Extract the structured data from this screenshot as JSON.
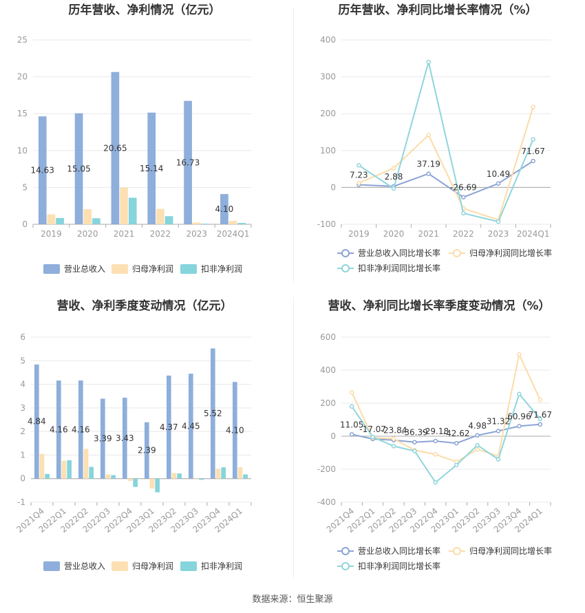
{
  "source_note": "数据来源：恒生聚源",
  "chart_data": [
    {
      "type": "bar",
      "title": "历年营收、净利情况（亿元）",
      "categories": [
        "2019",
        "2020",
        "2021",
        "2022",
        "2023",
        "2024Q1"
      ],
      "ylim": [
        0,
        25
      ],
      "yticks": [
        0,
        5,
        10,
        15,
        20,
        25
      ],
      "grid": true,
      "legend": "bottom",
      "series": [
        {
          "name": "营业总收入",
          "color": "#8eaedb",
          "values": [
            14.63,
            15.05,
            20.65,
            15.14,
            16.73,
            4.1
          ],
          "labels": [
            "14.63",
            "15.05",
            "20.65",
            "15.14",
            "16.73",
            "4.10"
          ]
        },
        {
          "name": "归母净利润",
          "color": "#fce0b3",
          "values": [
            1.35,
            2.05,
            4.98,
            2.09,
            0.25,
            0.45
          ]
        },
        {
          "name": "扣非净利润",
          "color": "#86d4dc",
          "values": [
            0.85,
            0.82,
            3.6,
            1.1,
            0.08,
            0.18
          ]
        }
      ]
    },
    {
      "type": "line",
      "title": "历年营收、净利同比增长率情况（%）",
      "categories": [
        "2019",
        "2020",
        "2021",
        "2022",
        "2023",
        "2024Q1"
      ],
      "ylim": [
        -100,
        400
      ],
      "yticks": [
        -100,
        0,
        100,
        200,
        300,
        400
      ],
      "grid": true,
      "legend": "bottom",
      "series": [
        {
          "name": "营业总收入同比增长率",
          "color": "#8ba3d4",
          "values": [
            7.23,
            2.88,
            37.19,
            -26.69,
            10.49,
            71.67
          ],
          "labels": [
            "7.23",
            "2.88",
            "37.19",
            "-26.69",
            "10.49",
            "71.67"
          ]
        },
        {
          "name": "归母净利润同比增长率",
          "color": "#fbdca8",
          "values": [
            12,
            52,
            142,
            -57,
            -88,
            218
          ]
        },
        {
          "name": "扣非净利润同比增长率",
          "color": "#8fd5dc",
          "values": [
            60,
            -3,
            340,
            -70,
            -93,
            130
          ]
        }
      ]
    },
    {
      "type": "bar",
      "title": "营收、净利季度变动情况（亿元）",
      "categories": [
        "2021Q4",
        "2022Q1",
        "2022Q2",
        "2022Q3",
        "2022Q4",
        "2023Q1",
        "2023Q2",
        "2023Q3",
        "2023Q4",
        "2024Q1"
      ],
      "ylim": [
        -1,
        6
      ],
      "yticks": [
        -1,
        0,
        1,
        2,
        3,
        4,
        5,
        6
      ],
      "grid": true,
      "legend": "bottom",
      "series": [
        {
          "name": "营业总收入",
          "color": "#8eaedb",
          "values": [
            4.84,
            4.16,
            4.16,
            3.39,
            3.43,
            2.39,
            4.37,
            4.45,
            5.52,
            4.1
          ],
          "labels": [
            "4.84",
            "4.16",
            "4.16",
            "3.39",
            "3.43",
            "2.39",
            "4.37",
            "4.45",
            "5.52",
            "4.10"
          ]
        },
        {
          "name": "归母净利润",
          "color": "#fce0b3",
          "values": [
            1.05,
            0.76,
            1.26,
            0.18,
            -0.1,
            -0.42,
            0.24,
            -0.03,
            0.42,
            0.48
          ]
        },
        {
          "name": "扣非净利润",
          "color": "#86d4dc",
          "values": [
            0.2,
            0.78,
            0.5,
            0.15,
            -0.35,
            -0.58,
            0.22,
            -0.05,
            0.48,
            0.18
          ]
        }
      ]
    },
    {
      "type": "line",
      "title": "营收、净利同比增长率季度变动情况（%）",
      "categories": [
        "2021Q4",
        "2022Q1",
        "2022Q2",
        "2022Q3",
        "2022Q4",
        "2023Q1",
        "2023Q2",
        "2023Q3",
        "2023Q4",
        "2024Q1"
      ],
      "ylim": [
        -400,
        600
      ],
      "yticks": [
        -400,
        -200,
        0,
        200,
        400,
        600
      ],
      "grid": true,
      "legend": "bottom",
      "series": [
        {
          "name": "营业总收入同比增长率",
          "color": "#8ba3d4",
          "values": [
            11.05,
            -17.07,
            -23.84,
            -36.39,
            -29.18,
            -42.62,
            4.98,
            31.32,
            60.96,
            71.67
          ],
          "labels": [
            "11.05",
            "-17.07",
            "-23.84",
            "-36.39",
            "-29.18",
            "-42.62",
            "4.98",
            "31.32",
            "60.96",
            "71.67"
          ]
        },
        {
          "name": "归母净利润同比增长率",
          "color": "#fbdca8",
          "values": [
            265,
            -10,
            -15,
            -85,
            -110,
            -155,
            -80,
            -120,
            495,
            220
          ]
        },
        {
          "name": "扣非净利润同比增长率",
          "color": "#8fd5dc",
          "values": [
            180,
            -5,
            -60,
            -90,
            -280,
            -175,
            -55,
            -140,
            255,
            105
          ]
        }
      ]
    }
  ]
}
